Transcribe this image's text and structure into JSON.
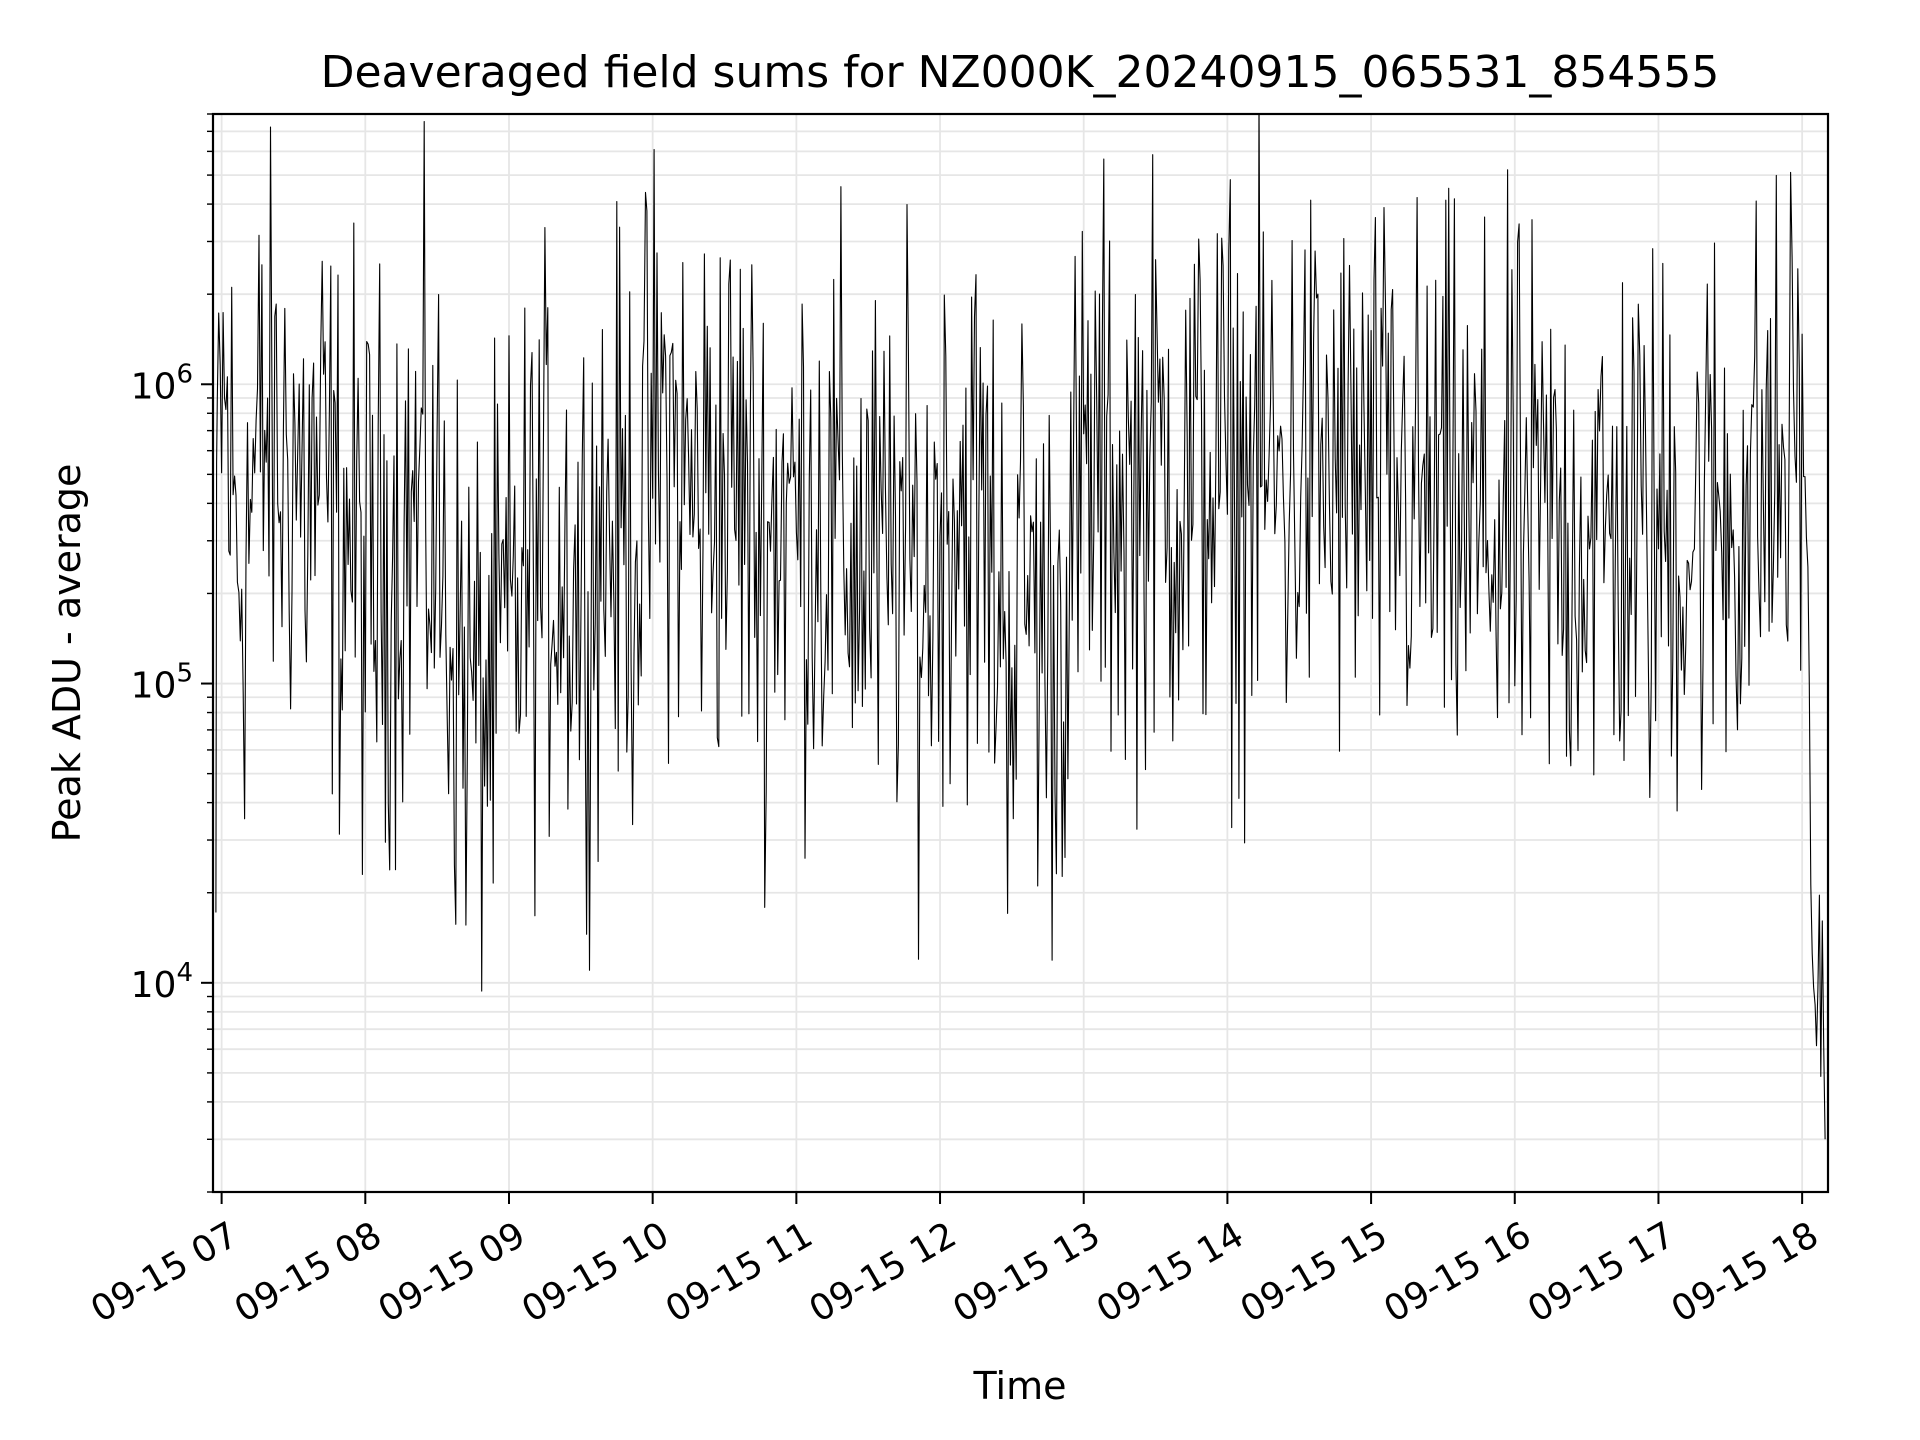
{
  "chart_data": {
    "type": "line",
    "title": "Deaveraged field sums for NZ000K_20240915_065531_854555",
    "xlabel": "Time",
    "ylabel": "Peak ADU - average",
    "yscale": "log",
    "ylim": [
      2000,
      8000000
    ],
    "xlim_hours": [
      6.94,
      18.18
    ],
    "grid": true,
    "line_color": "#000000",
    "x_tick_labels": [
      "09-15 07",
      "09-15 08",
      "09-15 09",
      "09-15 10",
      "09-15 11",
      "09-15 12",
      "09-15 13",
      "09-15 14",
      "09-15 15",
      "09-15 16",
      "09-15 17",
      "09-15 18"
    ],
    "x_tick_hours": [
      7,
      8,
      9,
      10,
      11,
      12,
      13,
      14,
      15,
      16,
      17,
      18
    ],
    "y_tick_values": [
      10000,
      100000,
      1000000
    ],
    "y_tick_labels": [
      {
        "base": "10",
        "exp": "4"
      },
      {
        "base": "10",
        "exp": "5"
      },
      {
        "base": "10",
        "exp": "6"
      }
    ],
    "series": [
      {
        "x_hours": [
          6.96,
          6.97,
          6.99,
          7.05,
          7.1,
          7.15,
          7.2,
          7.3,
          7.4,
          7.5,
          7.6,
          7.7,
          7.8,
          7.9,
          8.0,
          8.1,
          8.2,
          8.3,
          8.4,
          8.5,
          8.6,
          8.7,
          8.8,
          8.9,
          9.0,
          9.1,
          9.2,
          9.3,
          9.4,
          9.5,
          9.6,
          9.7,
          9.8,
          9.9,
          10.0,
          10.1,
          10.2,
          10.3,
          10.4,
          10.5,
          10.6,
          10.7,
          10.8,
          10.9,
          11.0,
          11.1,
          11.2,
          11.3,
          11.4,
          11.5,
          11.6,
          11.7,
          11.8,
          11.9,
          12.0,
          12.1,
          12.2,
          12.3,
          12.4,
          12.5,
          12.6,
          12.7,
          12.8,
          12.9,
          13.0,
          13.1,
          13.2,
          13.3,
          13.4,
          13.5,
          13.6,
          13.7,
          13.8,
          13.9,
          14.0,
          14.1,
          14.2,
          14.3,
          14.4,
          14.5,
          14.6,
          14.7,
          14.8,
          14.9,
          15.0,
          15.1,
          15.2,
          15.3,
          15.4,
          15.5,
          15.6,
          15.7,
          15.8,
          15.9,
          16.0,
          16.1,
          16.2,
          16.3,
          16.4,
          16.5,
          16.6,
          16.7,
          16.8,
          16.9,
          17.0,
          17.1,
          17.2,
          17.3,
          17.4,
          17.5,
          17.6,
          17.7,
          17.75,
          17.8,
          17.85,
          17.9,
          17.95,
          18.0,
          18.02,
          18.04,
          18.06,
          18.08,
          18.1,
          18.12,
          18.14,
          18.16
        ],
        "y": [
          14000,
          500000,
          1000000,
          600000,
          300000,
          250000,
          400000,
          700000,
          500000,
          600000,
          400000,
          500000,
          300000,
          350000,
          200000,
          250000,
          300000,
          350000,
          400000,
          300000,
          150000,
          100000,
          80000,
          100000,
          150000,
          200000,
          250000,
          300000,
          250000,
          200000,
          300000,
          350000,
          300000,
          350000,
          600000,
          700000,
          500000,
          400000,
          500000,
          450000,
          500000,
          350000,
          300000,
          400000,
          350000,
          400000,
          300000,
          350000,
          250000,
          300000,
          200000,
          300000,
          250000,
          180000,
          400000,
          450000,
          400000,
          350000,
          200000,
          150000,
          250000,
          150000,
          120000,
          250000,
          450000,
          500000,
          450000,
          400000,
          500000,
          550000,
          500000,
          450000,
          500000,
          550000,
          500000,
          450000,
          550000,
          500000,
          450000,
          500000,
          550000,
          500000,
          450000,
          500000,
          450000,
          400000,
          450000,
          400000,
          350000,
          400000,
          350000,
          300000,
          350000,
          300000,
          350000,
          300000,
          350000,
          300000,
          300000,
          350000,
          300000,
          300000,
          350000,
          300000,
          300000,
          350000,
          300000,
          350000,
          400000,
          350000,
          400000,
          450000,
          500000,
          450000,
          500000,
          550000,
          800000,
          900000,
          600000,
          150000,
          25000,
          10000,
          7000,
          15000,
          9000,
          3000
        ]
      }
    ]
  }
}
